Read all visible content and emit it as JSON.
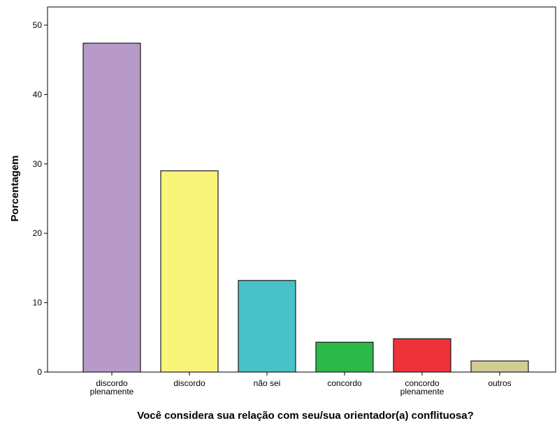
{
  "chart_data": {
    "type": "bar",
    "xlabel": "Você considera sua relação com seu/sua orientador(a) conflituosa?",
    "ylabel": "Porcentagem",
    "ylim": [
      0,
      52
    ],
    "yticks": [
      0,
      10,
      20,
      30,
      40,
      50
    ],
    "grid": false,
    "categories": [
      [
        "discordo",
        "plenamente"
      ],
      [
        "discordo"
      ],
      [
        "não sei"
      ],
      [
        "concordo"
      ],
      [
        "concordo",
        "plenamente"
      ],
      [
        "outros"
      ]
    ],
    "values": [
      47.4,
      29.0,
      13.2,
      4.3,
      4.8,
      1.6
    ],
    "colors": [
      "#b89ac8",
      "#f8f57a",
      "#48c2c6",
      "#2db84a",
      "#ee3239",
      "#d2cc95"
    ]
  }
}
